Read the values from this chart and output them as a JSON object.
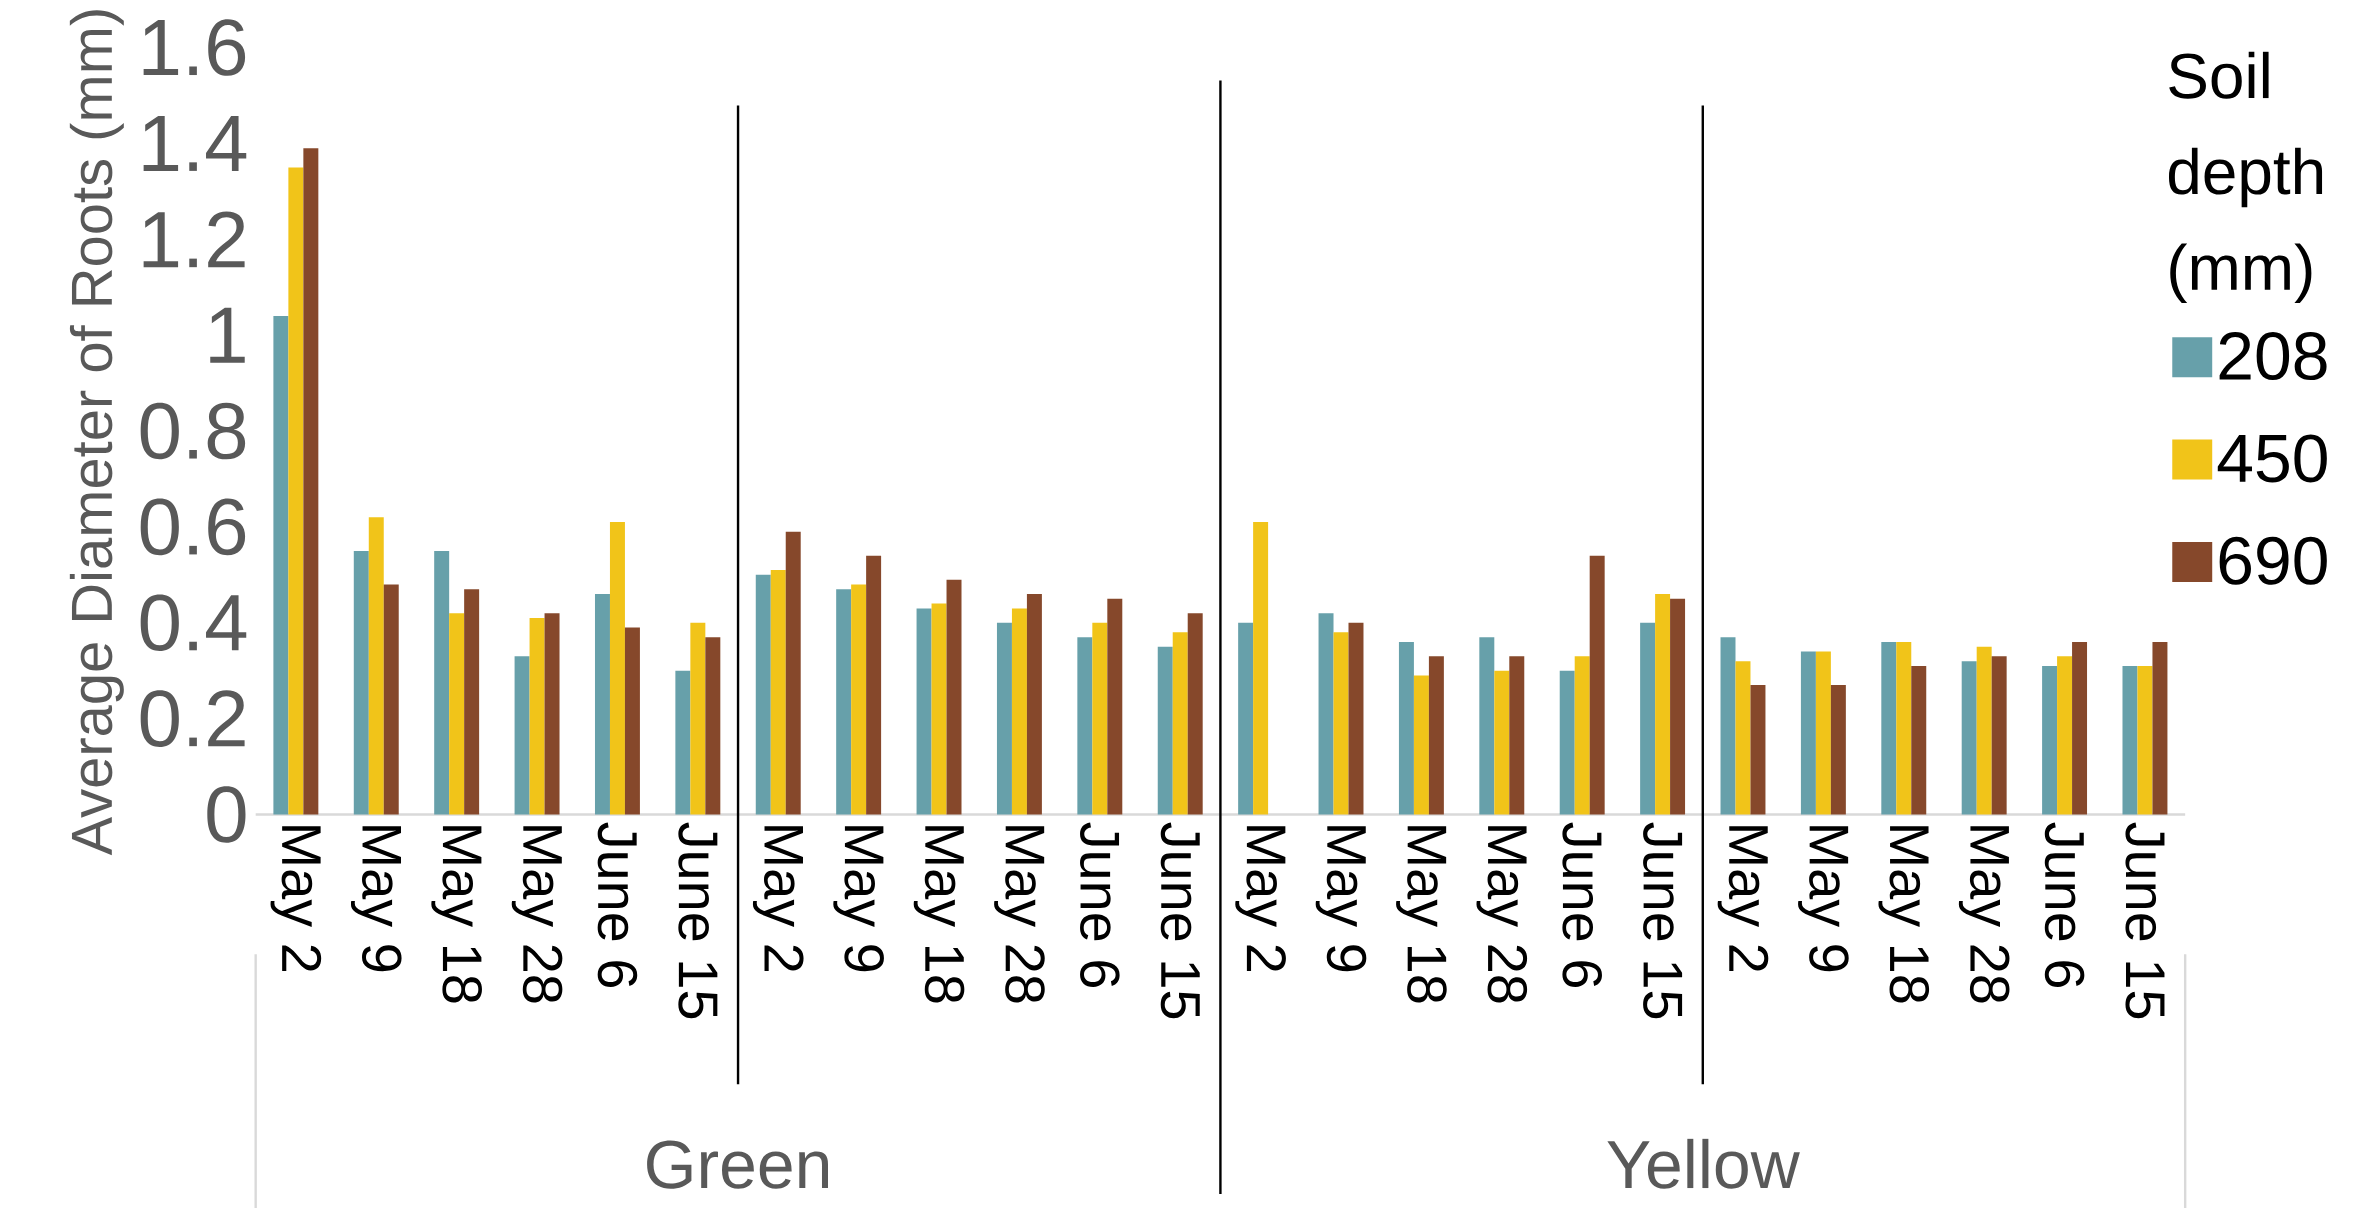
{
  "chart_data": {
    "type": "bar",
    "ylabel": "Average Diameter of Roots (mm)",
    "legend_title": "Soil depth (mm)",
    "legend": "right",
    "categories": [
      "May 2",
      "May 9",
      "May 18",
      "May 28",
      "June 6",
      "June 15",
      "May 2",
      "May 9",
      "May 18",
      "May 28",
      "June 6",
      "June 15",
      "May 2",
      "May 9",
      "May 18",
      "May 28",
      "June 6",
      "June 15",
      "May 2",
      "May 9",
      "May 18",
      "May 28",
      "June 6",
      "June 15"
    ],
    "series": [
      {
        "name": "208",
        "color": "#67a0aa",
        "values": [
          1.04,
          0.55,
          0.55,
          0.33,
          0.46,
          0.3,
          0.5,
          0.47,
          0.43,
          0.4,
          0.37,
          0.35,
          0.4,
          0.42,
          0.36,
          0.37,
          0.3,
          0.4,
          0.37,
          0.34,
          0.36,
          0.32,
          0.31,
          0.31
        ]
      },
      {
        "name": "450",
        "color": "#f1c419",
        "values": [
          1.35,
          0.62,
          0.42,
          0.41,
          0.61,
          0.4,
          0.51,
          0.48,
          0.44,
          0.43,
          0.4,
          0.38,
          0.61,
          0.38,
          0.29,
          0.3,
          0.33,
          0.46,
          0.32,
          0.34,
          0.36,
          0.35,
          0.33,
          0.31
        ]
      },
      {
        "name": "690",
        "color": "#86482b",
        "values": [
          1.39,
          0.48,
          0.47,
          0.42,
          0.39,
          0.37,
          0.59,
          0.54,
          0.49,
          0.46,
          0.45,
          0.42,
          null,
          0.4,
          0.33,
          0.33,
          0.54,
          0.45,
          0.27,
          0.27,
          0.31,
          0.33,
          0.36,
          0.36
        ]
      }
    ],
    "ylim": [
      0,
      1.6
    ],
    "yticks": [
      0,
      0.2,
      0.4,
      0.6,
      0.8,
      1,
      1.2,
      1.4,
      1.6
    ],
    "grid": false,
    "annotations": [
      "Green",
      "Yellow"
    ]
  }
}
